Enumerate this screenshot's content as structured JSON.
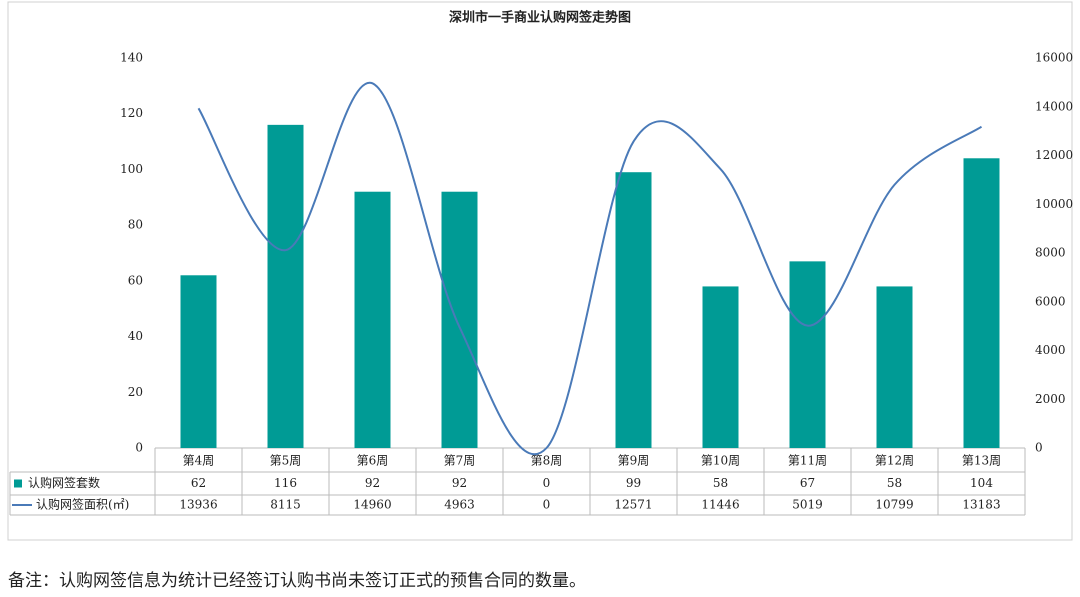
{
  "chart_data": {
    "type": "bar",
    "title": "深圳市一手商业认购网签走势图",
    "categories": [
      "第4周",
      "第5周",
      "第6周",
      "第7周",
      "第8周",
      "第9周",
      "第10周",
      "第11周",
      "第12周",
      "第13周"
    ],
    "series": [
      {
        "name": "认购网签套数",
        "type": "bar",
        "color": "#009b95",
        "values": [
          62,
          116,
          92,
          92,
          0,
          99,
          58,
          67,
          58,
          104
        ]
      },
      {
        "name": "认购网签面积(㎡)",
        "type": "line",
        "axis": "y2",
        "color": "#4a7ab8",
        "values": [
          13936,
          8115,
          14960,
          4963,
          0,
          12571,
          11446,
          5019,
          10799,
          13183
        ]
      }
    ],
    "ylim": [
      0,
      140
    ],
    "yticks": [
      0,
      20,
      40,
      60,
      80,
      100,
      120,
      140
    ],
    "y2lim": [
      0,
      16000
    ],
    "y2ticks": [
      0,
      2000,
      4000,
      6000,
      8000,
      10000,
      12000,
      14000,
      16000
    ],
    "note": "备注：认购网签信息为统计已经签订认购书尚未签订正式的预售合同的数量。"
  }
}
